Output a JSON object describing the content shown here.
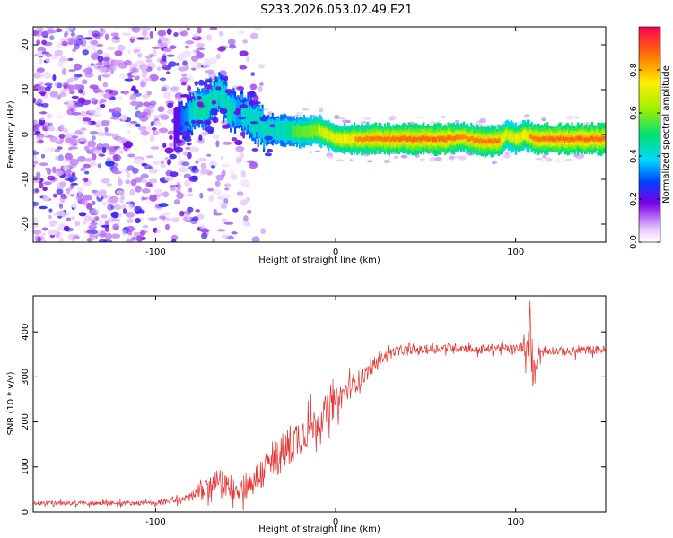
{
  "title": "S233.2026.053.02.49.E21",
  "chart_data": [
    {
      "type": "heatmap",
      "title": "S233.2026.053.02.49.E21",
      "xlabel": "Height of straight line (km)",
      "ylabel": "Frequency (Hz)",
      "xlim": [
        -168,
        150
      ],
      "ylim": [
        -24,
        24
      ],
      "xticks": [
        -100,
        0,
        100
      ],
      "yticks": [
        -20,
        -10,
        0,
        10,
        20
      ],
      "colorbar": {
        "label": "Normalized spectral amplitude",
        "range": [
          0,
          1
        ],
        "ticks": [
          "0.0",
          "0.2",
          "0.4",
          "0.6",
          "0.8"
        ],
        "tick_values": [
          0.0,
          0.2,
          0.4,
          0.6,
          0.8
        ]
      },
      "ridge": {
        "x": [
          -90,
          -85,
          -80,
          -75,
          -70,
          -65,
          -60,
          -55,
          -50,
          -45,
          -40,
          -30,
          -20,
          -10,
          0,
          10,
          20,
          40,
          60,
          70,
          80,
          90,
          95,
          100,
          105,
          110,
          120,
          140,
          150
        ],
        "frequency": [
          2,
          3,
          5,
          6,
          7,
          9,
          6,
          5,
          4,
          3,
          1,
          1,
          0.5,
          1,
          -1,
          -1,
          -1,
          -1,
          -1,
          -0.5,
          -1.5,
          -1.5,
          0,
          -1,
          0,
          -1,
          -1,
          -1,
          -1
        ],
        "amplitude": [
          0.2,
          0.35,
          0.45,
          0.55,
          0.5,
          0.45,
          0.5,
          0.4,
          0.45,
          0.5,
          0.45,
          0.5,
          0.6,
          0.7,
          0.75,
          0.85,
          0.9,
          0.95,
          0.95,
          0.85,
          0.9,
          0.9,
          0.7,
          0.75,
          0.8,
          0.9,
          0.95,
          0.95,
          0.95
        ]
      },
      "noise_region": {
        "x_from": -168,
        "x_to": -40,
        "amplitude": 0.15
      }
    },
    {
      "type": "line",
      "xlabel": "Height of straight line (km)",
      "ylabel": "SNR (10 * v/v)",
      "xlim": [
        -168,
        150
      ],
      "ylim": [
        0,
        480
      ],
      "xticks": [
        -100,
        0,
        100
      ],
      "yticks": [
        0,
        100,
        200,
        300,
        400
      ],
      "series": [
        {
          "name": "SNR",
          "color": "#e8322f",
          "x": [
            -168,
            -140,
            -120,
            -100,
            -90,
            -85,
            -80,
            -75,
            -70,
            -65,
            -60,
            -55,
            -50,
            -45,
            -40,
            -35,
            -30,
            -25,
            -20,
            -15,
            -10,
            -5,
            0,
            5,
            10,
            15,
            20,
            25,
            30,
            40,
            50,
            60,
            70,
            80,
            90,
            100,
            104,
            106,
            108,
            110,
            112,
            115,
            120,
            130,
            140,
            150
          ],
          "y": [
            20,
            20,
            20,
            20,
            25,
            30,
            35,
            45,
            55,
            70,
            55,
            50,
            60,
            70,
            90,
            110,
            130,
            150,
            170,
            185,
            200,
            225,
            245,
            265,
            285,
            300,
            320,
            340,
            355,
            360,
            360,
            365,
            365,
            360,
            365,
            360,
            370,
            340,
            400,
            300,
            360,
            355,
            360,
            355,
            360,
            360
          ],
          "noise": [
            6,
            6,
            6,
            6,
            8,
            10,
            15,
            25,
            30,
            35,
            30,
            30,
            40,
            45,
            50,
            55,
            55,
            60,
            55,
            50,
            45,
            45,
            40,
            35,
            30,
            25,
            20,
            15,
            12,
            12,
            12,
            12,
            12,
            12,
            12,
            14,
            18,
            40,
            60,
            60,
            30,
            14,
            12,
            12,
            12,
            12
          ]
        }
      ]
    }
  ]
}
